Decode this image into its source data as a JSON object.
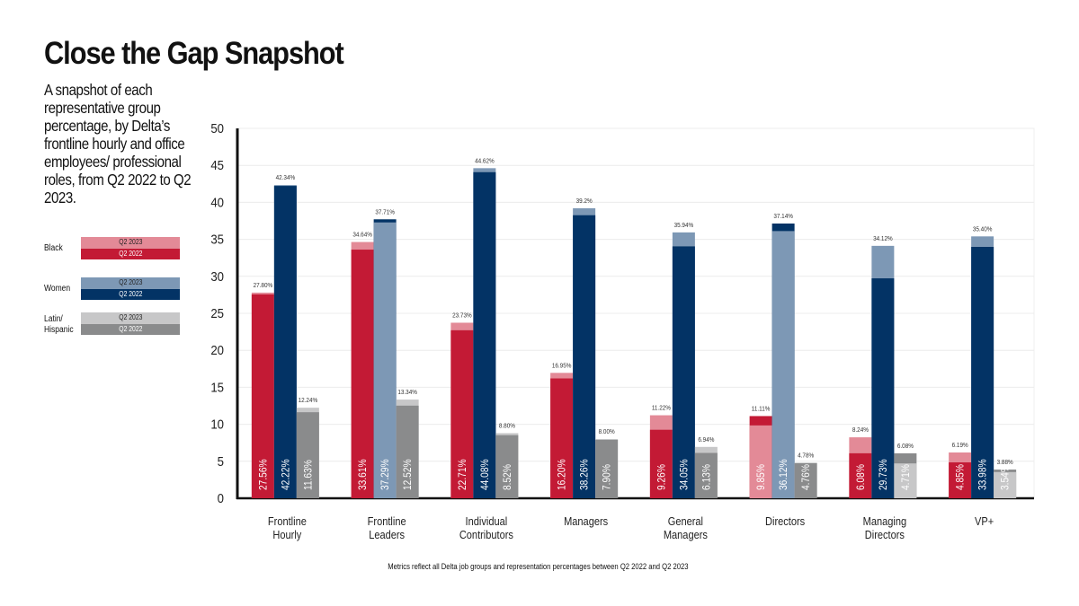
{
  "header": {
    "title": "Close the Gap Snapshot",
    "subtitle": "A snapshot of each representative group percentage, by Delta’s frontline hourly and office employees/ professional roles, from Q2 2022 to Q2 2023."
  },
  "legend": [
    {
      "group": "Black",
      "q2023_label": "Q2 2023",
      "q2022_label": "Q2 2022",
      "q2023_color": "#e38a97",
      "q2022_color": "#c31a35"
    },
    {
      "group": "Women",
      "q2023_label": "Q2 2023",
      "q2022_label": "Q2 2022",
      "q2023_color": "#7d98b5",
      "q2022_color": "#033365"
    },
    {
      "group": "Latin/ Hispanic",
      "group_lines": [
        "Latin/",
        "Hispanic"
      ],
      "q2023_label": "Q2 2023",
      "q2022_label": "Q2 2022",
      "q2023_color": "#c7c7c8",
      "q2022_color": "#8a8b8c"
    }
  ],
  "footnote": "Metrics reflect all Delta job groups and representation percentages between Q2 2022 and Q2 2023",
  "chart_data": {
    "type": "bar",
    "title": "Close the Gap Snapshot",
    "xlabel": "",
    "ylabel": "",
    "ylim": [
      0,
      50
    ],
    "yticks": [
      0,
      5,
      10,
      15,
      20,
      25,
      30,
      35,
      40,
      45,
      50
    ],
    "grid": true,
    "categories": [
      [
        "Frontline",
        "Hourly"
      ],
      [
        "Frontline",
        "Leaders"
      ],
      [
        "Individual",
        "Contributors"
      ],
      [
        "Managers"
      ],
      [
        "General",
        "Managers"
      ],
      [
        "Directors"
      ],
      [
        "Managing",
        "Directors"
      ],
      [
        "VP+"
      ]
    ],
    "series": [
      {
        "name": "Black",
        "q2022": [
          27.56,
          33.61,
          22.71,
          16.2,
          9.26,
          11.11,
          6.08,
          4.85
        ],
        "q2023": [
          27.8,
          34.64,
          23.73,
          16.95,
          11.22,
          9.85,
          8.24,
          6.19
        ],
        "q2022_labels": [
          "27.56%",
          "33.61%",
          "22.71%",
          "16.20%",
          "9.26%",
          "11.11%",
          "6.08%",
          "4.85%"
        ],
        "q2023_labels": [
          "27.80%",
          "34.64%",
          "23.73%",
          "16.95%",
          "11.22%",
          "9.85%",
          "8.24%",
          "6.19%"
        ],
        "light_color": "#e38a97",
        "dark_color": "#c31a35"
      },
      {
        "name": "Women",
        "q2022": [
          42.22,
          37.71,
          44.08,
          38.26,
          34.05,
          37.14,
          29.73,
          33.98
        ],
        "q2023": [
          42.34,
          37.29,
          44.62,
          39.2,
          35.94,
          36.12,
          34.12,
          35.4
        ],
        "q2022_labels": [
          "42.22%",
          "37.71%",
          "44.08%",
          "38.26%",
          "34.05%",
          "37.14%",
          "29.73%",
          "33.98%"
        ],
        "q2023_labels": [
          "42.34%",
          "37.29%",
          "44.62%",
          "39.2%",
          "35.94%",
          "36.12%",
          "34.12%",
          "35.40%"
        ],
        "light_color": "#7d98b5",
        "dark_color": "#033365"
      },
      {
        "name": "Latin/Hispanic",
        "q2022": [
          11.63,
          12.52,
          8.52,
          7.9,
          6.13,
          4.76,
          6.08,
          3.88
        ],
        "q2023": [
          12.24,
          13.34,
          8.8,
          8.0,
          6.94,
          4.78,
          4.71,
          3.54
        ],
        "q2022_labels": [
          "11.63%",
          "12.52%",
          "8.52%",
          "7.90%",
          "6.13%",
          "4.76%",
          "6.08%",
          "3.88%"
        ],
        "q2023_labels": [
          "12.24%",
          "13.34%",
          "8.80%",
          "8.00%",
          "6.94%",
          "4.78%",
          "4.71%",
          "3.54%"
        ],
        "light_color": "#c7c7c8",
        "dark_color": "#8a8b8c"
      }
    ],
    "annotations": {
      "top_labels": [
        [
          "27.80%",
          "42.34%",
          "12.24%"
        ],
        [
          "34.64%",
          "37.71%",
          "13.34%"
        ],
        [
          "23.73%",
          "44.62%",
          "8.80%"
        ],
        [
          "16.95%",
          "39.2%",
          "8.00%"
        ],
        [
          "11.22%",
          "35.94%",
          "6.94%"
        ],
        [
          "11.11%",
          "37.14%",
          "4.78%"
        ],
        [
          "8.24%",
          "34.12%",
          "6.08%"
        ],
        [
          "6.19%",
          "35.40%",
          "3.88%"
        ]
      ],
      "inner_labels": [
        [
          "27.56%",
          "42.22%",
          "11.63%"
        ],
        [
          "33.61%",
          "37.29%",
          "12.52%"
        ],
        [
          "22.71%",
          "44.08%",
          "8.52%"
        ],
        [
          "16.20%",
          "38.26%",
          "7.90%"
        ],
        [
          "9.26%",
          "34.05%",
          "6.13%"
        ],
        [
          "9.85%",
          "36.12%",
          "4.76%"
        ],
        [
          "6.08%",
          "29.73%",
          "4.71%"
        ],
        [
          "4.85%",
          "33.98%",
          "3.54%"
        ]
      ]
    }
  }
}
